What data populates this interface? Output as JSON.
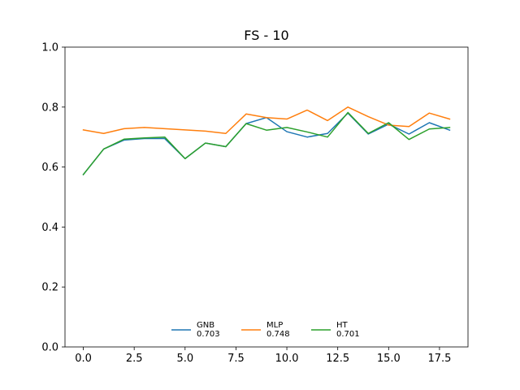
{
  "chart_data": {
    "type": "line",
    "title": "FS - 10",
    "xlabel": "",
    "ylabel": "",
    "xlim": [
      -0.9,
      18.9
    ],
    "ylim": [
      0.0,
      1.0
    ],
    "x_ticks": [
      0.0,
      2.5,
      5.0,
      7.5,
      10.0,
      12.5,
      15.0,
      17.5
    ],
    "x_tick_labels": [
      "0.0",
      "2.5",
      "5.0",
      "7.5",
      "10.0",
      "12.5",
      "15.0",
      "17.5"
    ],
    "y_ticks": [
      0.0,
      0.2,
      0.4,
      0.6,
      0.8,
      1.0
    ],
    "y_tick_labels": [
      "0.0",
      "0.2",
      "0.4",
      "0.6",
      "0.8",
      "1.0"
    ],
    "grid": false,
    "legend_position": "lower-center",
    "x": [
      0,
      1,
      2,
      3,
      4,
      5,
      6,
      7,
      8,
      9,
      10,
      11,
      12,
      13,
      14,
      15,
      16,
      17,
      18
    ],
    "series": [
      {
        "name": "GNB",
        "score": "0.703",
        "color": "#1f77b4",
        "values": [
          0.575,
          0.66,
          0.69,
          0.695,
          0.695,
          0.628,
          0.68,
          0.668,
          0.745,
          0.765,
          0.718,
          0.7,
          0.712,
          0.78,
          0.71,
          0.743,
          0.71,
          0.748,
          0.723
        ]
      },
      {
        "name": "MLP",
        "score": "0.748",
        "color": "#ff7f0e",
        "values": [
          0.724,
          0.712,
          0.728,
          0.732,
          0.728,
          0.724,
          0.72,
          0.712,
          0.777,
          0.765,
          0.76,
          0.79,
          0.755,
          0.8,
          0.768,
          0.74,
          0.735,
          0.78,
          0.76
        ]
      },
      {
        "name": "HT",
        "score": "0.701",
        "color": "#2ca02c",
        "values": [
          0.575,
          0.66,
          0.693,
          0.697,
          0.7,
          0.628,
          0.68,
          0.668,
          0.745,
          0.723,
          0.732,
          0.717,
          0.7,
          0.782,
          0.712,
          0.748,
          0.692,
          0.727,
          0.732
        ]
      }
    ]
  }
}
